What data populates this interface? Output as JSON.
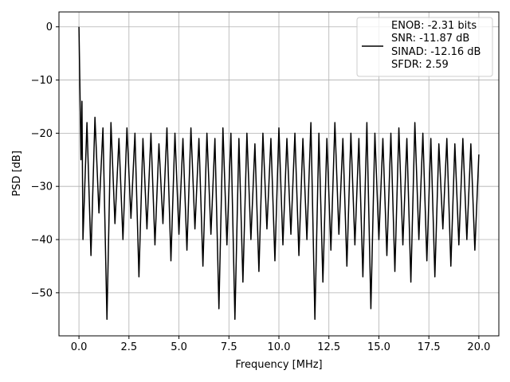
{
  "chart_data": {
    "type": "line",
    "xlabel": "Frequency [MHz]",
    "ylabel": "PSD [dB]",
    "x": [
      0,
      0.05,
      0.1,
      0.15,
      0.2,
      0.4,
      0.6,
      0.8,
      1.0,
      1.2,
      1.4,
      1.6,
      1.8,
      2.0,
      2.2,
      2.4,
      2.6,
      2.8,
      3.0,
      3.2,
      3.4,
      3.6,
      3.8,
      4.0,
      4.2,
      4.4,
      4.6,
      4.8,
      5.0,
      5.2,
      5.4,
      5.6,
      5.8,
      6.0,
      6.2,
      6.4,
      6.6,
      6.8,
      7.0,
      7.2,
      7.4,
      7.6,
      7.8,
      8.0,
      8.2,
      8.4,
      8.6,
      8.8,
      9.0,
      9.2,
      9.4,
      9.6,
      9.8,
      10.0,
      10.2,
      10.4,
      10.6,
      10.8,
      11.0,
      11.2,
      11.4,
      11.6,
      11.8,
      12.0,
      12.2,
      12.4,
      12.6,
      12.8,
      13.0,
      13.2,
      13.4,
      13.6,
      13.8,
      14.0,
      14.2,
      14.4,
      14.6,
      14.8,
      15.0,
      15.2,
      15.4,
      15.6,
      15.8,
      16.0,
      16.2,
      16.4,
      16.6,
      16.8,
      17.0,
      17.2,
      17.4,
      17.6,
      17.8,
      18.0,
      18.2,
      18.4,
      18.6,
      18.8,
      19.0,
      19.2,
      19.4,
      19.6,
      19.8,
      20.0
    ],
    "series": [
      {
        "name": "ENOB: -2.31 bits\nSNR: -11.87 dB\nSINAD: -12.16 dB\nSFDR: 2.59",
        "color": "#000000",
        "values": [
          0,
          -12,
          -25,
          -14,
          -40,
          -18,
          -43,
          -17,
          -35,
          -19,
          -55,
          -18,
          -37,
          -21,
          -40,
          -19,
          -36,
          -20,
          -47,
          -21,
          -38,
          -20,
          -41,
          -22,
          -37,
          -19,
          -44,
          -20,
          -39,
          -21,
          -42,
          -19,
          -38,
          -21,
          -45,
          -20,
          -39,
          -21,
          -53,
          -19,
          -41,
          -20,
          -55,
          -21,
          -48,
          -20,
          -40,
          -22,
          -46,
          -20,
          -38,
          -21,
          -44,
          -19,
          -41,
          -21,
          -39,
          -20,
          -43,
          -21,
          -40,
          -18,
          -55,
          -20,
          -48,
          -21,
          -42,
          -18,
          -39,
          -21,
          -45,
          -20,
          -41,
          -21,
          -47,
          -18,
          -53,
          -20,
          -40,
          -21,
          -43,
          -20,
          -46,
          -19,
          -41,
          -21,
          -48,
          -18,
          -40,
          -20,
          -44,
          -21,
          -47,
          -22,
          -38,
          -21,
          -45,
          -22,
          -41,
          -21,
          -40,
          -22,
          -42,
          -24
        ]
      }
    ],
    "xlim": [
      -1,
      21
    ],
    "ylim": [
      -58.1,
      2.8
    ],
    "xticks": [
      {
        "value": 0,
        "label": "0.0"
      },
      {
        "value": 2.5,
        "label": "2.5"
      },
      {
        "value": 5,
        "label": "5.0"
      },
      {
        "value": 7.5,
        "label": "7.5"
      },
      {
        "value": 10,
        "label": "10.0"
      },
      {
        "value": 12.5,
        "label": "12.5"
      },
      {
        "value": 15,
        "label": "15.0"
      },
      {
        "value": 17.5,
        "label": "17.5"
      },
      {
        "value": 20,
        "label": "20.0"
      }
    ],
    "yticks": [
      {
        "value": -50,
        "label": "−50"
      },
      {
        "value": -40,
        "label": "−40"
      },
      {
        "value": -30,
        "label": "−30"
      },
      {
        "value": -20,
        "label": "−20"
      },
      {
        "value": -10,
        "label": "−10"
      },
      0
    ],
    "grid": true,
    "legend": "upper right"
  }
}
